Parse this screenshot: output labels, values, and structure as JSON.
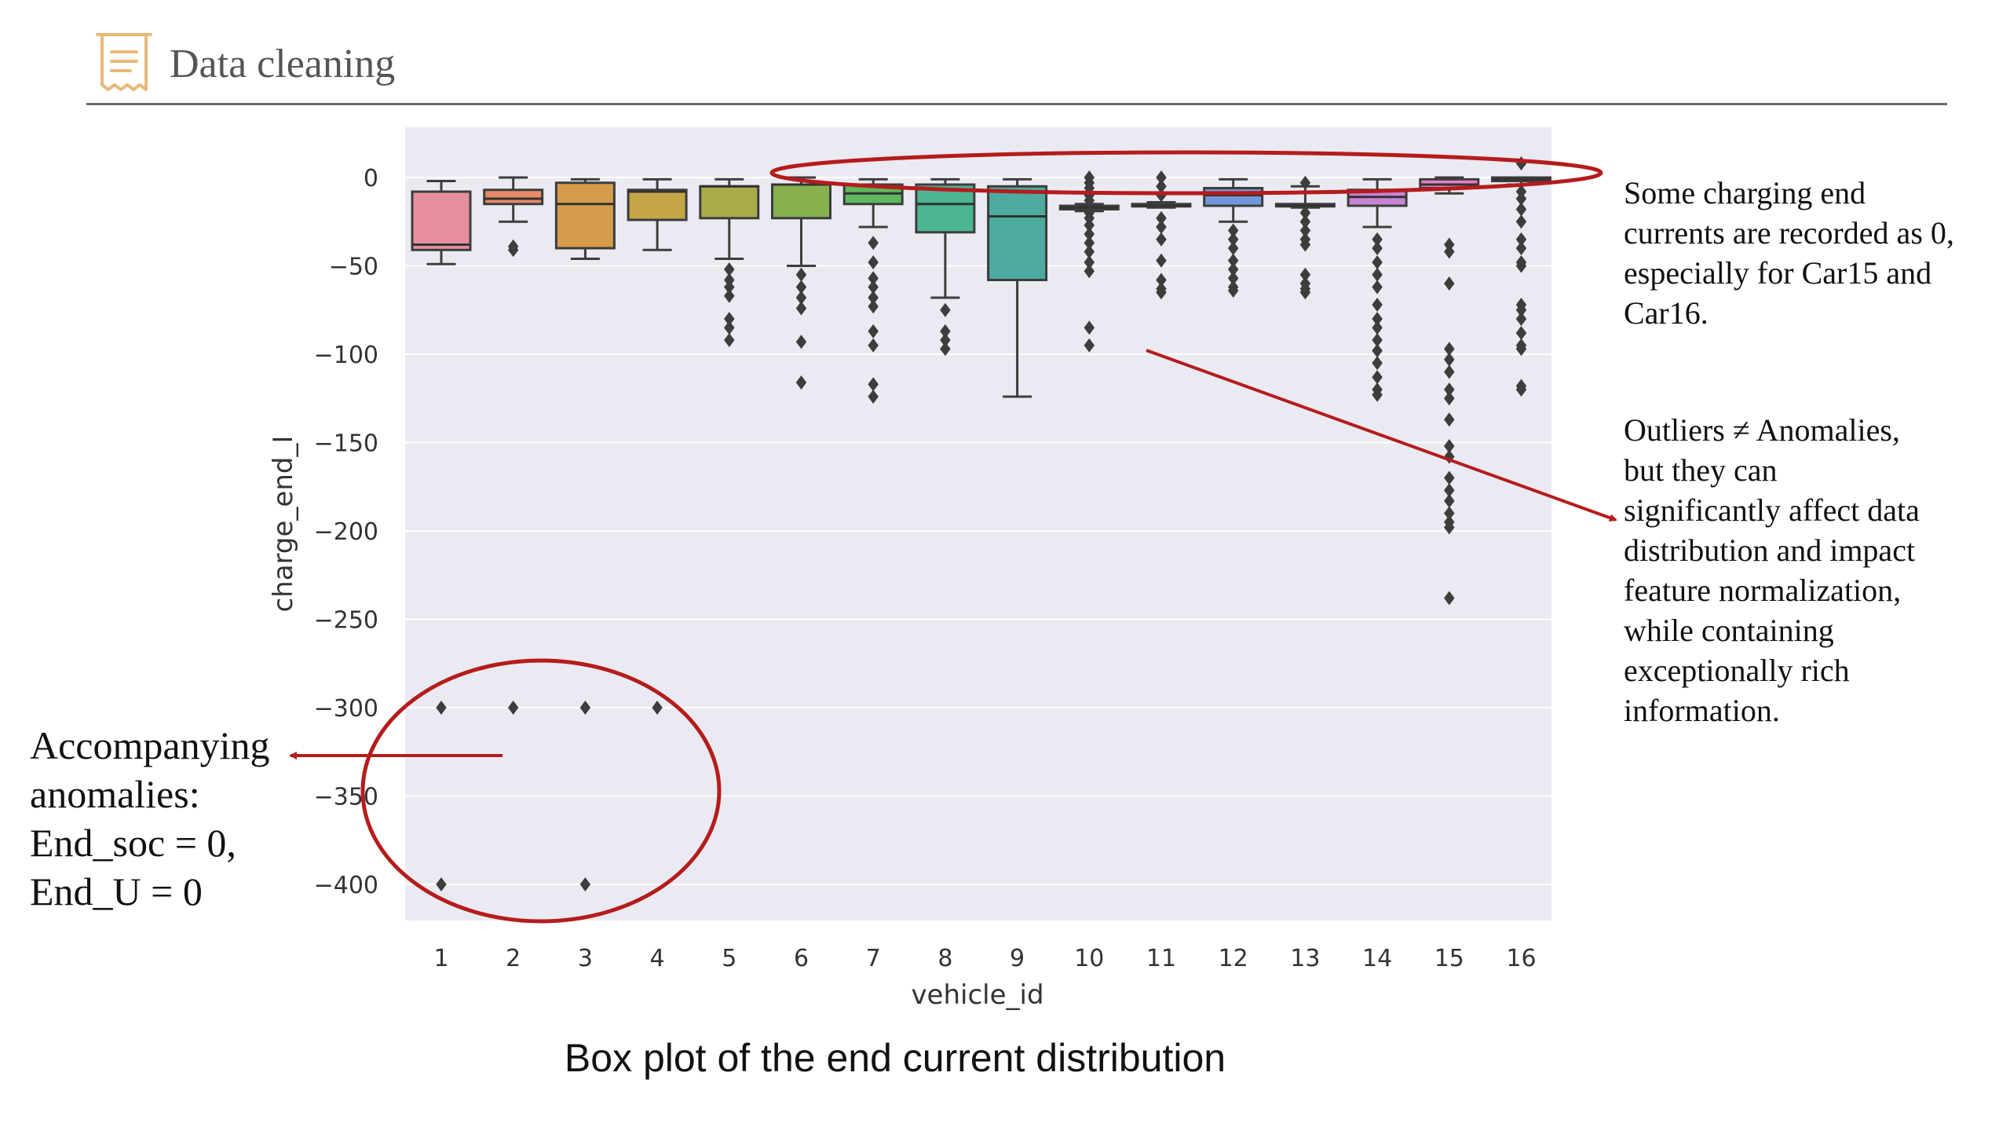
{
  "slide": {
    "title": "Data cleaning",
    "icon": "document-icon",
    "caption": "Box plot of the end current distribution"
  },
  "annotations": {
    "zero_currents": "Some charging end\ncurrents are recorded as 0,\nespecially for Car15 and\nCar16.",
    "outliers": "Outliers ≠ Anomalies,\nbut they can\nsignificantly affect data\ndistribution and impact\nfeature normalization,\nwhile containing\nexceptionally rich\ninformation.",
    "anomalies": "Accompanying\nanomalies:\nEnd_soc = 0,\nEnd_U = 0"
  },
  "colors": {
    "plot_bg": "#eaeaf2",
    "annotation": "#b51c1c",
    "median": "#333333",
    "flier": "#3d3d3d"
  },
  "chart_data": {
    "type": "box",
    "xlabel": "vehicle_id",
    "ylabel": "charge_end_I",
    "ylim": [
      -455,
      30
    ],
    "yticks": [
      0,
      -50,
      -100,
      -150,
      -200,
      -250,
      -300,
      -350,
      -400
    ],
    "grid": true,
    "categories": [
      "1",
      "2",
      "3",
      "4",
      "5",
      "6",
      "7",
      "8",
      "9",
      "10",
      "11",
      "12",
      "13",
      "14",
      "15",
      "16"
    ],
    "boxes": [
      {
        "id": "1",
        "color": "#e6909d",
        "whislo": -49,
        "q1": -41,
        "median": -38,
        "q3": -8,
        "whishi": -2,
        "fliers": [
          -300,
          -400
        ]
      },
      {
        "id": "2",
        "color": "#e8896a",
        "whislo": -25,
        "q1": -15,
        "median": -12,
        "q3": -7,
        "whishi": 0,
        "fliers": [
          -39,
          -41,
          -300
        ]
      },
      {
        "id": "3",
        "color": "#d59c4c",
        "whislo": -46,
        "q1": -40,
        "median": -15,
        "q3": -3,
        "whishi": -1,
        "fliers": [
          -300,
          -400
        ]
      },
      {
        "id": "4",
        "color": "#c4a646",
        "whislo": -41,
        "q1": -24,
        "median": -8,
        "q3": -7,
        "whishi": -1,
        "fliers": [
          -300
        ]
      },
      {
        "id": "5",
        "color": "#a9ab48",
        "whislo": -46,
        "q1": -23,
        "median": -5,
        "q3": -5,
        "whishi": -1,
        "fliers": [
          -52,
          -58,
          -62,
          -67,
          -80,
          -85,
          -92
        ]
      },
      {
        "id": "6",
        "color": "#86b14e",
        "whislo": -50,
        "q1": -23,
        "median": -4,
        "q3": -4,
        "whishi": 0,
        "fliers": [
          -55,
          -62,
          -68,
          -74,
          -93,
          -116
        ]
      },
      {
        "id": "7",
        "color": "#5eb85e",
        "whislo": -28,
        "q1": -15,
        "median": -9,
        "q3": -4,
        "whishi": -1,
        "fliers": [
          -37,
          -48,
          -57,
          -62,
          -68,
          -73,
          -87,
          -95,
          -117,
          -124
        ]
      },
      {
        "id": "8",
        "color": "#4cb593",
        "whislo": -68,
        "q1": -31,
        "median": -15,
        "q3": -4,
        "whishi": -1,
        "fliers": [
          -75,
          -87,
          -92,
          -97
        ]
      },
      {
        "id": "9",
        "color": "#4cab9e",
        "whislo": -124,
        "q1": -58,
        "median": -22,
        "q3": -5,
        "whishi": -1,
        "fliers": []
      },
      {
        "id": "10",
        "color": "#4aa7b1",
        "whislo": -19,
        "q1": -18,
        "median": -17,
        "q3": -16,
        "whishi": -15,
        "fliers": [
          0,
          -3,
          -6,
          -10,
          -13,
          -20,
          -23,
          -27,
          -32,
          -37,
          -42,
          -48,
          -53,
          -85,
          -95
        ]
      },
      {
        "id": "11",
        "color": "#50a8c8",
        "whislo": -17,
        "q1": -16,
        "median": -16,
        "q3": -15,
        "whishi": -14,
        "fliers": [
          0,
          -5,
          -10,
          -23,
          -28,
          -35,
          -47,
          -58,
          -63,
          -65
        ]
      },
      {
        "id": "12",
        "color": "#7197d8",
        "whislo": -25,
        "q1": -16,
        "median": -10,
        "q3": -6,
        "whishi": -1,
        "fliers": [
          -30,
          -35,
          -40,
          -47,
          -52,
          -57,
          -62,
          -64
        ]
      },
      {
        "id": "13",
        "color": "#a08ce0",
        "whislo": -17,
        "q1": -16,
        "median": -16,
        "q3": -15,
        "whishi": -5,
        "fliers": [
          -3,
          -20,
          -25,
          -30,
          -35,
          -38,
          -55,
          -60,
          -63,
          -65
        ]
      },
      {
        "id": "14",
        "color": "#c784d6",
        "whislo": -28,
        "q1": -16,
        "median": -11,
        "q3": -7,
        "whishi": -1,
        "fliers": [
          -35,
          -40,
          -48,
          -55,
          -62,
          -72,
          -80,
          -85,
          -92,
          -98,
          -105,
          -113,
          -120,
          -123
        ]
      },
      {
        "id": "15",
        "color": "#e082c3",
        "whislo": -9,
        "q1": -6,
        "median": -4,
        "q3": -1,
        "whishi": 0,
        "fliers": [
          -38,
          -42,
          -60,
          -97,
          -103,
          -110,
          -120,
          -125,
          -137,
          -152,
          -158,
          -170,
          -177,
          -183,
          -190,
          -195,
          -198,
          -238
        ]
      },
      {
        "id": "16",
        "color": "#e685a8",
        "whislo": -4,
        "q1": -2,
        "median": -1,
        "q3": 0,
        "whishi": 0,
        "fliers": [
          8,
          -8,
          -12,
          -18,
          -25,
          -35,
          -40,
          -48,
          -50,
          -72,
          -75,
          -80,
          -88,
          -95,
          -97,
          -118,
          -120
        ]
      }
    ]
  }
}
